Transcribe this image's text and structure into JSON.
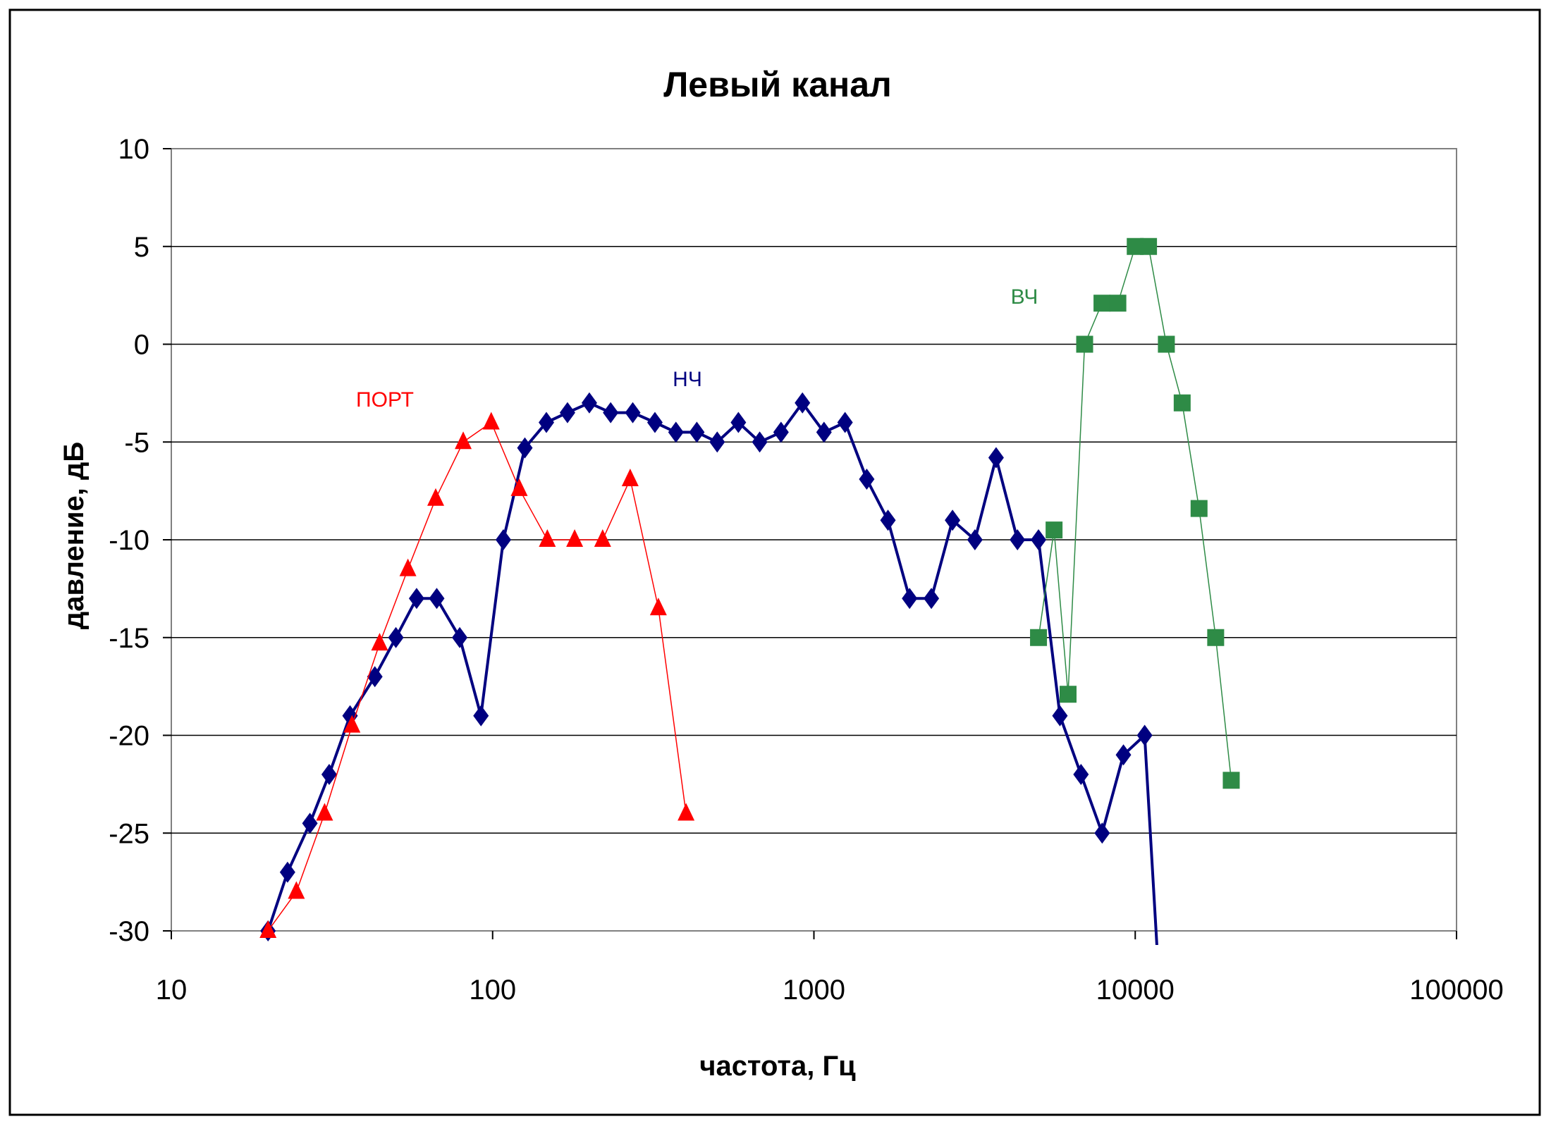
{
  "chart_data": {
    "type": "line",
    "title": "Левый канал",
    "xlabel": "частота, Гц",
    "ylabel": "давление, дБ",
    "x_scale": "log",
    "xlim": [
      10,
      100000
    ],
    "ylim": [
      -30,
      10
    ],
    "x_ticks": [
      "10",
      "100",
      "1000",
      "10000",
      "100000"
    ],
    "y_ticks": [
      "10",
      "5",
      "0",
      "-5",
      "-10",
      "-15",
      "-20",
      "-25",
      "-30"
    ],
    "grid": "horizontal",
    "legend": "none",
    "series": [
      {
        "name": "НЧ",
        "color": "#000080",
        "marker": "diamond",
        "points": [
          [
            20,
            -30
          ],
          [
            23,
            -27
          ],
          [
            27,
            -24.5
          ],
          [
            31,
            -22
          ],
          [
            36,
            -19
          ],
          [
            43,
            -17
          ],
          [
            50,
            -15
          ],
          [
            58,
            -13
          ],
          [
            67,
            -13
          ],
          [
            79,
            -15
          ],
          [
            92,
            -19
          ],
          [
            108,
            -10
          ],
          [
            126,
            -5.3
          ],
          [
            147,
            -4
          ],
          [
            171,
            -3.5
          ],
          [
            200,
            -3
          ],
          [
            233,
            -3.5
          ],
          [
            273,
            -3.5
          ],
          [
            320,
            -4
          ],
          [
            372,
            -4.5
          ],
          [
            432,
            -4.5
          ],
          [
            500,
            -5
          ],
          [
            582,
            -4
          ],
          [
            678,
            -5
          ],
          [
            790,
            -4.5
          ],
          [
            921,
            -3
          ],
          [
            1075,
            -4.5
          ],
          [
            1250,
            -4
          ],
          [
            1460,
            -6.9
          ],
          [
            1700,
            -9
          ],
          [
            1985,
            -13
          ],
          [
            2320,
            -13
          ],
          [
            2700,
            -9
          ],
          [
            3170,
            -10
          ],
          [
            3690,
            -5.8
          ],
          [
            4300,
            -10
          ],
          [
            5000,
            -10
          ],
          [
            5830,
            -19
          ],
          [
            6780,
            -22
          ],
          [
            7890,
            -25
          ],
          [
            9190,
            -21
          ],
          [
            10700,
            -20
          ],
          [
            11800,
            -32
          ]
        ]
      },
      {
        "name": "ПОРТ",
        "color": "#ff0000",
        "marker": "triangle",
        "points": [
          [
            20,
            -30
          ],
          [
            24.5,
            -28
          ],
          [
            30,
            -24
          ],
          [
            36.5,
            -19.5
          ],
          [
            44.5,
            -15.3
          ],
          [
            54.5,
            -11.5
          ],
          [
            66.5,
            -7.9
          ],
          [
            81,
            -5
          ],
          [
            99,
            -4
          ],
          [
            121,
            -7.4
          ],
          [
            148,
            -10
          ],
          [
            180,
            -10
          ],
          [
            220,
            -10
          ],
          [
            268,
            -6.9
          ],
          [
            328,
            -13.5
          ],
          [
            400,
            -24
          ]
        ]
      },
      {
        "name": "ВЧ",
        "color": "#2e8b46",
        "marker": "square",
        "points": [
          [
            5000,
            -15
          ],
          [
            5590,
            -9.5
          ],
          [
            6180,
            -17.9
          ],
          [
            6960,
            0
          ],
          [
            7880,
            2.1
          ],
          [
            8830,
            2.1
          ],
          [
            10000,
            5
          ],
          [
            11000,
            5
          ],
          [
            12500,
            0
          ],
          [
            14000,
            -3
          ],
          [
            15800,
            -8.4
          ],
          [
            17800,
            -15
          ],
          [
            19900,
            -22.3
          ]
        ]
      }
    ]
  }
}
